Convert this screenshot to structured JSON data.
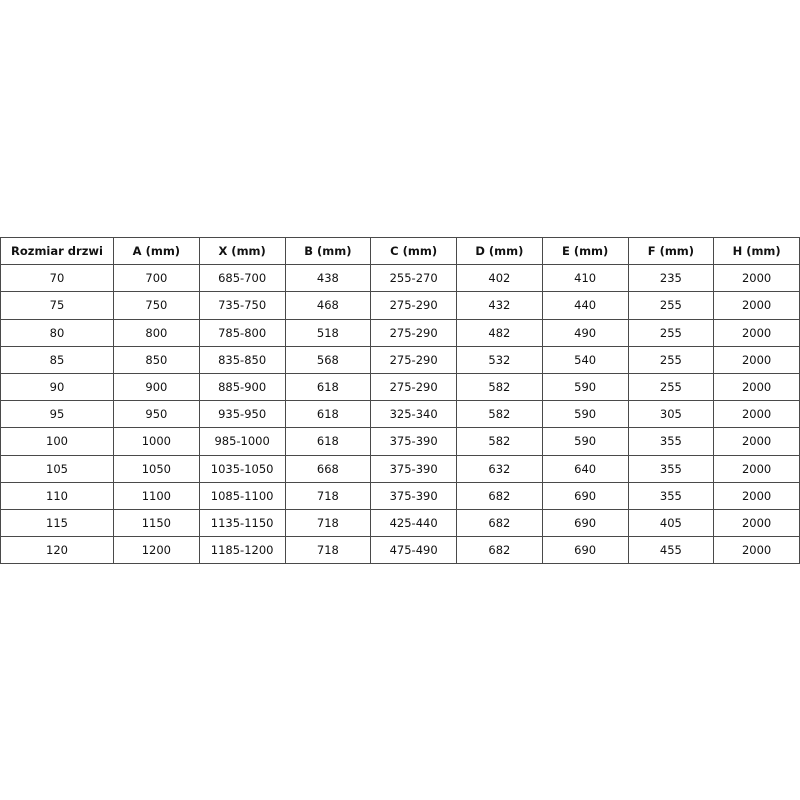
{
  "table": {
    "headers": [
      "Rozmiar drzwi",
      "A (mm)",
      "X (mm)",
      "B (mm)",
      "C (mm)",
      "D (mm)",
      "E (mm)",
      "F (mm)",
      "H (mm)"
    ],
    "rows": [
      [
        "70",
        "700",
        "685-700",
        "438",
        "255-270",
        "402",
        "410",
        "235",
        "2000"
      ],
      [
        "75",
        "750",
        "735-750",
        "468",
        "275-290",
        "432",
        "440",
        "255",
        "2000"
      ],
      [
        "80",
        "800",
        "785-800",
        "518",
        "275-290",
        "482",
        "490",
        "255",
        "2000"
      ],
      [
        "85",
        "850",
        "835-850",
        "568",
        "275-290",
        "532",
        "540",
        "255",
        "2000"
      ],
      [
        "90",
        "900",
        "885-900",
        "618",
        "275-290",
        "582",
        "590",
        "255",
        "2000"
      ],
      [
        "95",
        "950",
        "935-950",
        "618",
        "325-340",
        "582",
        "590",
        "305",
        "2000"
      ],
      [
        "100",
        "1000",
        "985-1000",
        "618",
        "375-390",
        "582",
        "590",
        "355",
        "2000"
      ],
      [
        "105",
        "1050",
        "1035-1050",
        "668",
        "375-390",
        "632",
        "640",
        "355",
        "2000"
      ],
      [
        "110",
        "1100",
        "1085-1100",
        "718",
        "375-390",
        "682",
        "690",
        "355",
        "2000"
      ],
      [
        "115",
        "1150",
        "1135-1150",
        "718",
        "425-440",
        "682",
        "690",
        "405",
        "2000"
      ],
      [
        "120",
        "1200",
        "1185-1200",
        "718",
        "475-490",
        "682",
        "690",
        "455",
        "2000"
      ]
    ]
  }
}
